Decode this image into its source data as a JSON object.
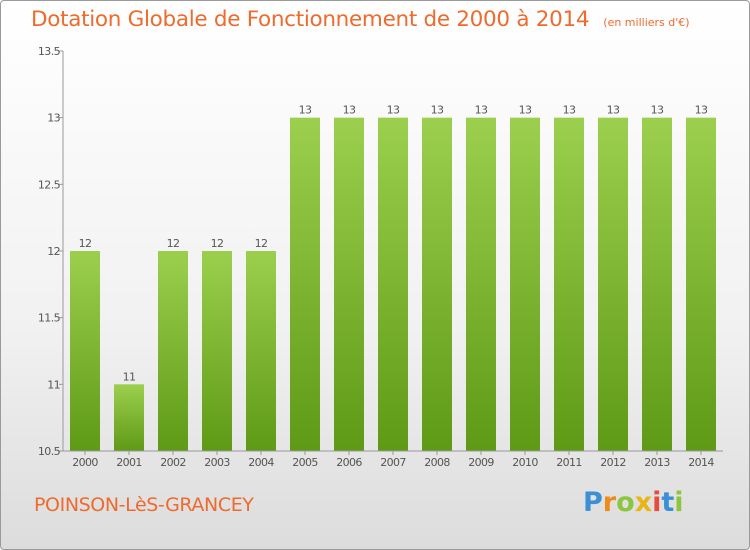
{
  "header": {
    "title": "Dotation Globale de Fonctionnement de 2000 à 2014",
    "subtitle": "(en milliers d'€)"
  },
  "footer": {
    "commune": "POINSON-LèS-GRANCEY",
    "logo_letters": [
      "P",
      "r",
      "o",
      "x",
      "i",
      "t",
      "i"
    ],
    "logo_colors": [
      "#3a8fd6",
      "#f08a1c",
      "#8cc63f",
      "#e8b512",
      "#e74c3c",
      "#3a8fd6",
      "#8cc63f"
    ]
  },
  "chart_data": {
    "type": "bar",
    "title": "Dotation Globale de Fonctionnement de 2000 à 2014",
    "categories": [
      "2000",
      "2001",
      "2002",
      "2003",
      "2004",
      "2005",
      "2006",
      "2007",
      "2008",
      "2009",
      "2010",
      "2011",
      "2012",
      "2013",
      "2014"
    ],
    "values": [
      12,
      11,
      12,
      12,
      12,
      13,
      13,
      13,
      13,
      13,
      13,
      13,
      13,
      13,
      13
    ],
    "data_labels": [
      "12",
      "11",
      "12",
      "12",
      "12",
      "13",
      "13",
      "13",
      "13",
      "13",
      "13",
      "13",
      "13",
      "13",
      "13"
    ],
    "ylim": [
      10.5,
      13.5
    ],
    "yticks": [
      10.5,
      11,
      11.5,
      12,
      12.5,
      13,
      13.5
    ],
    "ytick_labels": [
      "10.5",
      "11",
      "11.5",
      "12",
      "12.5",
      "13",
      "13.5"
    ],
    "bar_color_top": "#9ccf4e",
    "bar_color_bottom": "#5e9a16",
    "grid": false,
    "legend": "none"
  }
}
